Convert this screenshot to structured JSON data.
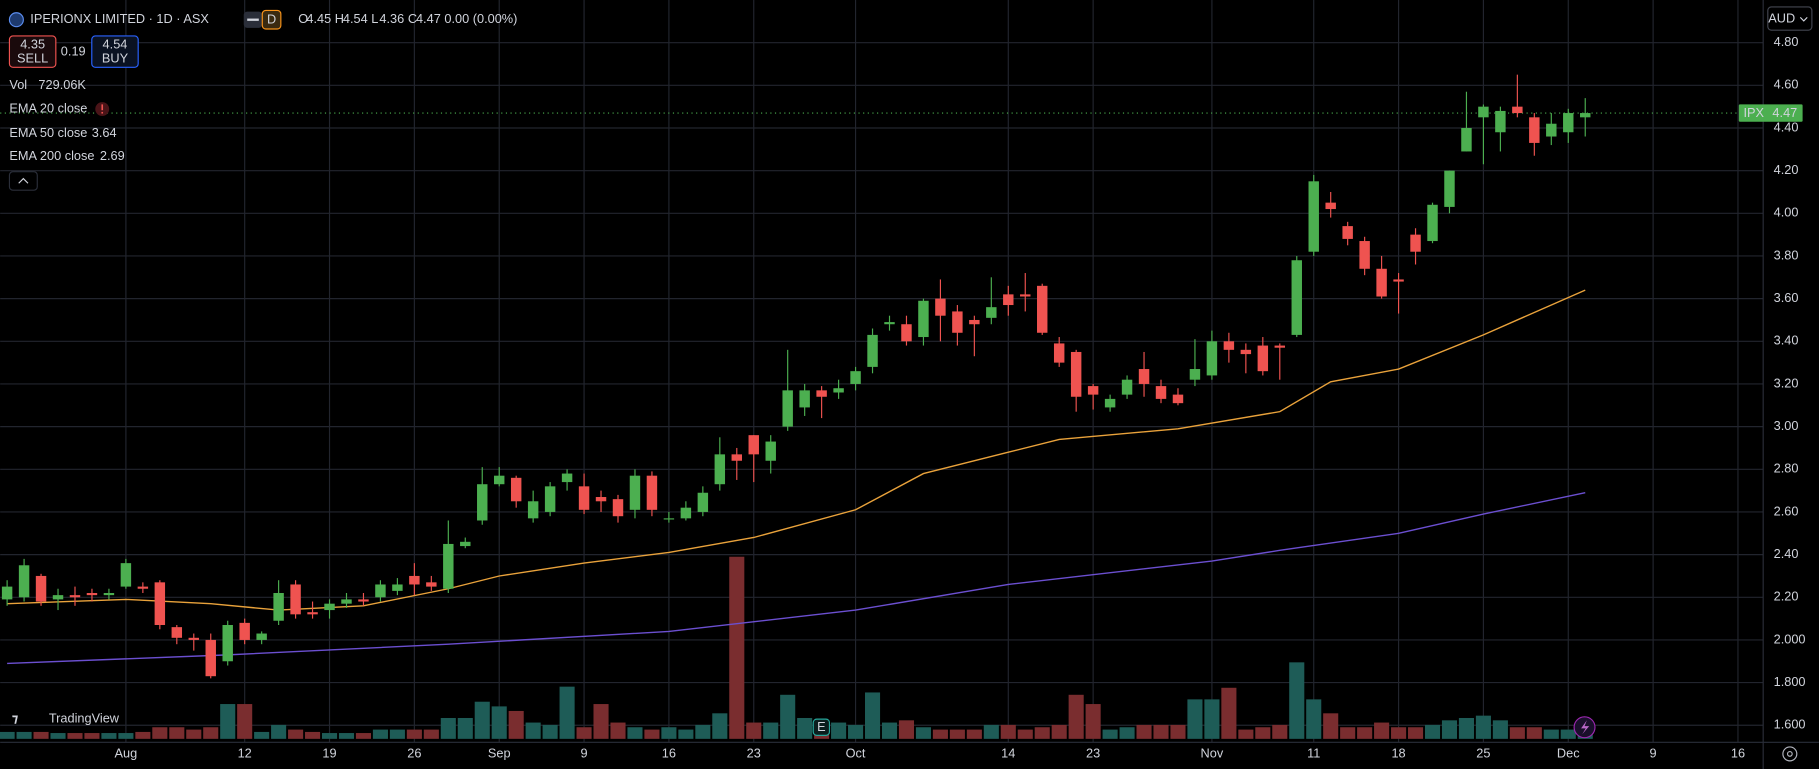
{
  "chart_data": {
    "type": "candlestick",
    "title": "IPERIONX LIMITED · 1D · ASX",
    "interval_badge": "D",
    "ohlc_legend": [
      {
        "label": "O",
        "value": 4.45
      },
      {
        "label": "H",
        "value": 4.54
      },
      {
        "label": "L",
        "value": 4.36
      },
      {
        "label": "C",
        "value": 4.47
      }
    ],
    "change": "0.00 (0.00%)",
    "sell": 4.35,
    "sell_label": "SELL",
    "spread": 0.19,
    "buy": 4.54,
    "buy_label": "BUY",
    "currency": "AUD",
    "symbol": "IPX",
    "last_price": 4.47,
    "logo": "TradingView",
    "event_marker": "E",
    "extra_indicator": "EMA 20 close",
    "up_color": "#4caf50",
    "down_color": "#ef5350",
    "volume_up_color": "#1e5c57",
    "volume_down_color": "#7a2d2f",
    "grid": true,
    "categories": [
      null,
      null,
      null,
      null,
      null,
      null,
      null,
      "Aug",
      null,
      null,
      null,
      null,
      null,
      null,
      "12",
      null,
      null,
      null,
      null,
      "19",
      null,
      null,
      null,
      null,
      "26",
      null,
      null,
      null,
      null,
      "Sep",
      null,
      null,
      null,
      null,
      "9",
      null,
      null,
      null,
      null,
      "16",
      null,
      null,
      null,
      null,
      "23",
      null,
      null,
      null,
      null,
      null,
      "Oct",
      null,
      null,
      null,
      null,
      null,
      null,
      null,
      null,
      "14",
      null,
      null,
      null,
      null,
      "23",
      null,
      null,
      null,
      null,
      null,
      null,
      "Nov",
      null,
      null,
      null,
      null,
      null,
      "11",
      null,
      null,
      null,
      null,
      "18",
      null,
      null,
      null,
      null,
      "25",
      null,
      null,
      null,
      null,
      "Dec",
      null,
      null,
      null,
      null,
      "9",
      null,
      null,
      null,
      null,
      "16"
    ],
    "open": [
      2.19,
      2.2,
      2.3,
      2.19,
      2.21,
      2.22,
      2.21,
      2.25,
      2.25,
      2.27,
      2.06,
      2.01,
      2.0,
      1.9,
      2.08,
      2.0,
      2.09,
      2.26,
      2.13,
      2.14,
      2.17,
      2.19,
      2.2,
      2.23,
      2.3,
      2.27,
      2.24,
      2.44,
      2.56,
      2.73,
      2.76,
      2.57,
      2.6,
      2.74,
      2.72,
      2.67,
      2.66,
      2.61,
      2.77,
      2.57,
      2.57,
      2.6,
      2.73,
      2.87,
      2.96,
      2.84,
      3.0,
      3.09,
      3.17,
      3.16,
      3.2,
      3.28,
      3.48,
      3.48,
      3.42,
      3.6,
      3.54,
      3.5,
      3.51,
      3.62,
      3.62,
      3.66,
      3.39,
      3.35,
      3.19,
      3.09,
      3.15,
      3.27,
      3.19,
      3.15,
      3.22,
      3.24,
      3.4,
      3.36,
      3.38,
      3.38,
      3.43,
      3.82,
      4.05,
      3.94,
      3.87,
      3.74,
      3.69,
      3.9,
      3.87,
      4.03,
      4.29,
      4.45,
      4.38,
      4.5,
      4.45,
      4.36,
      4.38,
      4.45,
      null,
      null,
      null,
      null,
      null,
      null,
      null,
      null,
      null
    ],
    "high": [
      2.28,
      2.38,
      2.31,
      2.24,
      2.25,
      2.24,
      2.24,
      2.38,
      2.27,
      2.28,
      2.07,
      2.03,
      2.03,
      2.09,
      2.1,
      2.04,
      2.28,
      2.28,
      2.18,
      2.19,
      2.22,
      2.22,
      2.28,
      2.29,
      2.36,
      2.3,
      2.56,
      2.48,
      2.81,
      2.81,
      2.77,
      2.7,
      2.74,
      2.8,
      2.78,
      2.7,
      2.68,
      2.8,
      2.79,
      2.6,
      2.65,
      2.72,
      2.95,
      2.9,
      2.96,
      2.96,
      3.36,
      3.2,
      3.19,
      3.22,
      3.28,
      3.46,
      3.52,
      3.52,
      3.6,
      3.69,
      3.57,
      3.52,
      3.7,
      3.66,
      3.72,
      3.67,
      3.42,
      3.36,
      3.2,
      3.15,
      3.24,
      3.35,
      3.22,
      3.18,
      3.41,
      3.45,
      3.44,
      3.39,
      3.42,
      3.39,
      3.8,
      4.18,
      4.1,
      3.96,
      3.89,
      3.8,
      3.72,
      3.93,
      4.05,
      4.2,
      4.57,
      4.51,
      4.5,
      4.65,
      4.47,
      4.47,
      4.49,
      4.54,
      null,
      null,
      null,
      null,
      null,
      null,
      null,
      null,
      null
    ],
    "low": [
      2.16,
      2.18,
      2.16,
      2.14,
      2.16,
      2.18,
      2.19,
      2.24,
      2.22,
      2.05,
      1.98,
      1.95,
      1.82,
      1.88,
      1.98,
      1.98,
      2.07,
      2.1,
      2.1,
      2.1,
      2.15,
      2.16,
      2.18,
      2.21,
      2.21,
      2.23,
      2.22,
      2.43,
      2.54,
      2.72,
      2.62,
      2.55,
      2.58,
      2.7,
      2.59,
      2.6,
      2.55,
      2.57,
      2.58,
      2.55,
      2.56,
      2.58,
      2.7,
      2.75,
      2.74,
      2.78,
      2.98,
      3.05,
      3.04,
      3.13,
      3.17,
      3.25,
      3.45,
      3.38,
      3.38,
      3.4,
      3.38,
      3.33,
      3.48,
      3.52,
      3.54,
      3.43,
      3.28,
      3.07,
      3.08,
      3.07,
      3.13,
      3.14,
      3.11,
      3.1,
      3.19,
      3.22,
      3.3,
      3.25,
      3.24,
      3.22,
      3.42,
      3.8,
      3.98,
      3.85,
      3.71,
      3.6,
      3.53,
      3.76,
      3.86,
      4.0,
      4.29,
      4.23,
      4.29,
      4.45,
      4.27,
      4.32,
      4.33,
      4.36,
      null,
      null,
      null,
      null,
      null,
      null,
      null,
      null,
      null
    ],
    "close": [
      2.25,
      2.35,
      2.18,
      2.21,
      2.2,
      2.21,
      2.22,
      2.36,
      2.24,
      2.07,
      2.01,
      2.0,
      1.83,
      2.07,
      2.0,
      2.03,
      2.22,
      2.12,
      2.12,
      2.17,
      2.19,
      2.18,
      2.26,
      2.26,
      2.26,
      2.25,
      2.45,
      2.46,
      2.73,
      2.77,
      2.65,
      2.65,
      2.72,
      2.78,
      2.61,
      2.65,
      2.58,
      2.77,
      2.61,
      2.57,
      2.62,
      2.69,
      2.87,
      2.84,
      2.87,
      2.93,
      3.17,
      3.17,
      3.14,
      3.18,
      3.26,
      3.43,
      3.49,
      3.4,
      3.59,
      3.52,
      3.44,
      3.48,
      3.56,
      3.57,
      3.61,
      3.44,
      3.3,
      3.14,
      3.15,
      3.13,
      3.22,
      3.2,
      3.13,
      3.11,
      3.27,
      3.4,
      3.36,
      3.34,
      3.26,
      3.37,
      3.78,
      4.15,
      4.02,
      3.88,
      3.74,
      3.61,
      3.68,
      3.82,
      4.04,
      4.2,
      4.4,
      4.5,
      4.48,
      4.47,
      4.33,
      4.42,
      4.47,
      4.47,
      null,
      null,
      null,
      null,
      null,
      null,
      null,
      null,
      null
    ],
    "volume": {
      "name": "Vol",
      "value_label": "729.06K",
      "values": [
        620,
        620,
        620,
        520,
        520,
        520,
        520,
        520,
        620,
        1040,
        1040,
        830,
        1040,
        3120,
        3120,
        620,
        1250,
        830,
        620,
        520,
        520,
        520,
        830,
        830,
        830,
        830,
        1870,
        1870,
        3330,
        2910,
        2500,
        1460,
        1250,
        4680,
        1040,
        3120,
        1460,
        1040,
        830,
        1040,
        830,
        1250,
        2290,
        16330,
        1460,
        1460,
        3950,
        1870,
        1660,
        1460,
        1250,
        4160,
        1460,
        1660,
        1040,
        830,
        830,
        830,
        1250,
        1250,
        830,
        1040,
        1250,
        3950,
        3120,
        830,
        1040,
        1250,
        1250,
        1250,
        3540,
        3540,
        4580,
        830,
        1040,
        1250,
        6860,
        3540,
        2290,
        1040,
        1040,
        1460,
        1040,
        1040,
        1250,
        1660,
        1870,
        2080,
        1660,
        1040,
        1040,
        830,
        830,
        729.06,
        null,
        null,
        null,
        null,
        null,
        null,
        null,
        null,
        null
      ]
    },
    "series": [
      {
        "name": "EMA 50 close",
        "color": "#e9a23b",
        "x": [
          0,
          7,
          12,
          16,
          21,
          26,
          29,
          34,
          39,
          44,
          50,
          54,
          59,
          62,
          69,
          75,
          78,
          82,
          87,
          93
        ],
        "values": [
          2.17,
          2.19,
          2.17,
          2.14,
          2.16,
          2.24,
          2.3,
          2.36,
          2.41,
          2.48,
          2.61,
          2.78,
          2.88,
          2.94,
          2.99,
          3.07,
          3.21,
          3.27,
          3.43,
          3.64
        ]
      },
      {
        "name": "EMA 200 close",
        "color": "#6b4fd0",
        "x": [
          0,
          13,
          26,
          39,
          50,
          59,
          71,
          75,
          82,
          87,
          93
        ],
        "values": [
          1.89,
          1.93,
          1.98,
          2.04,
          2.14,
          2.26,
          2.37,
          2.42,
          2.5,
          2.59,
          2.69
        ]
      }
    ],
    "ylim": [
      1.52,
      5.0
    ],
    "yticks": [
      {
        "value": 4.8,
        "label": "4.80"
      },
      {
        "value": 4.6,
        "label": "4.60"
      },
      {
        "value": 4.4,
        "label": "4.40"
      },
      {
        "value": 4.2,
        "label": "4.20"
      },
      {
        "value": 4.0,
        "label": "4.00"
      },
      {
        "value": 3.8,
        "label": "3.80"
      },
      {
        "value": 3.6,
        "label": "3.60"
      },
      {
        "value": 3.4,
        "label": "3.40"
      },
      {
        "value": 3.2,
        "label": "3.20"
      },
      {
        "value": 3.0,
        "label": "3.00"
      },
      {
        "value": 2.8,
        "label": "2.80"
      },
      {
        "value": 2.6,
        "label": "2.60"
      },
      {
        "value": 2.4,
        "label": "2.40"
      },
      {
        "value": 2.2,
        "label": "2.20"
      },
      {
        "value": 2.0,
        "label": "2.000"
      },
      {
        "value": 1.8,
        "label": "1.800"
      },
      {
        "value": 1.6,
        "label": "1.600"
      }
    ]
  }
}
